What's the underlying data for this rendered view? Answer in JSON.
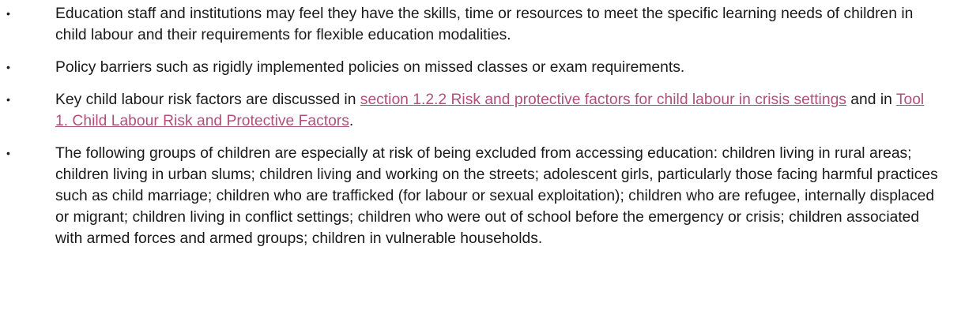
{
  "items": [
    {
      "segments": [
        {
          "text": "Education staff and institutions may feel they have the skills, time or resources to meet the specific learning needs of children in child labour and their requirements for flexible education modalities."
        }
      ]
    },
    {
      "segments": [
        {
          "text": "Policy barriers such as rigidly implemented policies on missed classes or exam requirements."
        }
      ]
    },
    {
      "segments": [
        {
          "text": "Key child labour risk factors are discussed in "
        },
        {
          "link": "section 1.2.2 Risk and protective factors for child labour in crisis settings"
        },
        {
          "text": " and in "
        },
        {
          "link": "Tool 1. Child Labour Risk and Protective Factors"
        },
        {
          "text": "."
        }
      ]
    },
    {
      "segments": [
        {
          "text": "The following groups of children are especially at risk of being excluded from accessing education: children living in rural areas; children living in urban slums; children living and working on the streets; adolescent girls, particularly those facing harmful practices such as child marriage; children who are trafficked (for labour or sexual exploitation); children who are refugee, internally displaced or migrant; children living in conflict settings; children who were out of school before the emergency or crisis; children associated with armed forces and armed groups; children in vulnerable households."
        }
      ]
    }
  ]
}
